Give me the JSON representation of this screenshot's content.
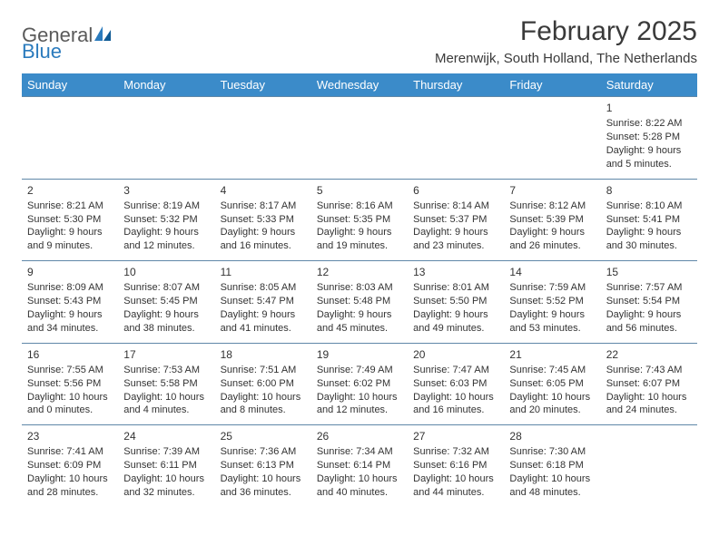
{
  "brand": {
    "general": "General",
    "blue": "Blue"
  },
  "title": "February 2025",
  "location": "Merenwijk, South Holland, The Netherlands",
  "colors": {
    "header_bg": "#3b8bc9",
    "header_text": "#ffffff",
    "row_border": "#5f87a8",
    "body_text": "#333333",
    "title_text": "#3a3a3a",
    "logo_gray": "#5a5a5a",
    "logo_blue": "#2b7bbd"
  },
  "day_headers": [
    "Sunday",
    "Monday",
    "Tuesday",
    "Wednesday",
    "Thursday",
    "Friday",
    "Saturday"
  ],
  "weeks": [
    [
      null,
      null,
      null,
      null,
      null,
      null,
      {
        "n": "1",
        "sr": "Sunrise: 8:22 AM",
        "ss": "Sunset: 5:28 PM",
        "d1": "Daylight: 9 hours",
        "d2": "and 5 minutes."
      }
    ],
    [
      {
        "n": "2",
        "sr": "Sunrise: 8:21 AM",
        "ss": "Sunset: 5:30 PM",
        "d1": "Daylight: 9 hours",
        "d2": "and 9 minutes."
      },
      {
        "n": "3",
        "sr": "Sunrise: 8:19 AM",
        "ss": "Sunset: 5:32 PM",
        "d1": "Daylight: 9 hours",
        "d2": "and 12 minutes."
      },
      {
        "n": "4",
        "sr": "Sunrise: 8:17 AM",
        "ss": "Sunset: 5:33 PM",
        "d1": "Daylight: 9 hours",
        "d2": "and 16 minutes."
      },
      {
        "n": "5",
        "sr": "Sunrise: 8:16 AM",
        "ss": "Sunset: 5:35 PM",
        "d1": "Daylight: 9 hours",
        "d2": "and 19 minutes."
      },
      {
        "n": "6",
        "sr": "Sunrise: 8:14 AM",
        "ss": "Sunset: 5:37 PM",
        "d1": "Daylight: 9 hours",
        "d2": "and 23 minutes."
      },
      {
        "n": "7",
        "sr": "Sunrise: 8:12 AM",
        "ss": "Sunset: 5:39 PM",
        "d1": "Daylight: 9 hours",
        "d2": "and 26 minutes."
      },
      {
        "n": "8",
        "sr": "Sunrise: 8:10 AM",
        "ss": "Sunset: 5:41 PM",
        "d1": "Daylight: 9 hours",
        "d2": "and 30 minutes."
      }
    ],
    [
      {
        "n": "9",
        "sr": "Sunrise: 8:09 AM",
        "ss": "Sunset: 5:43 PM",
        "d1": "Daylight: 9 hours",
        "d2": "and 34 minutes."
      },
      {
        "n": "10",
        "sr": "Sunrise: 8:07 AM",
        "ss": "Sunset: 5:45 PM",
        "d1": "Daylight: 9 hours",
        "d2": "and 38 minutes."
      },
      {
        "n": "11",
        "sr": "Sunrise: 8:05 AM",
        "ss": "Sunset: 5:47 PM",
        "d1": "Daylight: 9 hours",
        "d2": "and 41 minutes."
      },
      {
        "n": "12",
        "sr": "Sunrise: 8:03 AM",
        "ss": "Sunset: 5:48 PM",
        "d1": "Daylight: 9 hours",
        "d2": "and 45 minutes."
      },
      {
        "n": "13",
        "sr": "Sunrise: 8:01 AM",
        "ss": "Sunset: 5:50 PM",
        "d1": "Daylight: 9 hours",
        "d2": "and 49 minutes."
      },
      {
        "n": "14",
        "sr": "Sunrise: 7:59 AM",
        "ss": "Sunset: 5:52 PM",
        "d1": "Daylight: 9 hours",
        "d2": "and 53 minutes."
      },
      {
        "n": "15",
        "sr": "Sunrise: 7:57 AM",
        "ss": "Sunset: 5:54 PM",
        "d1": "Daylight: 9 hours",
        "d2": "and 56 minutes."
      }
    ],
    [
      {
        "n": "16",
        "sr": "Sunrise: 7:55 AM",
        "ss": "Sunset: 5:56 PM",
        "d1": "Daylight: 10 hours",
        "d2": "and 0 minutes."
      },
      {
        "n": "17",
        "sr": "Sunrise: 7:53 AM",
        "ss": "Sunset: 5:58 PM",
        "d1": "Daylight: 10 hours",
        "d2": "and 4 minutes."
      },
      {
        "n": "18",
        "sr": "Sunrise: 7:51 AM",
        "ss": "Sunset: 6:00 PM",
        "d1": "Daylight: 10 hours",
        "d2": "and 8 minutes."
      },
      {
        "n": "19",
        "sr": "Sunrise: 7:49 AM",
        "ss": "Sunset: 6:02 PM",
        "d1": "Daylight: 10 hours",
        "d2": "and 12 minutes."
      },
      {
        "n": "20",
        "sr": "Sunrise: 7:47 AM",
        "ss": "Sunset: 6:03 PM",
        "d1": "Daylight: 10 hours",
        "d2": "and 16 minutes."
      },
      {
        "n": "21",
        "sr": "Sunrise: 7:45 AM",
        "ss": "Sunset: 6:05 PM",
        "d1": "Daylight: 10 hours",
        "d2": "and 20 minutes."
      },
      {
        "n": "22",
        "sr": "Sunrise: 7:43 AM",
        "ss": "Sunset: 6:07 PM",
        "d1": "Daylight: 10 hours",
        "d2": "and 24 minutes."
      }
    ],
    [
      {
        "n": "23",
        "sr": "Sunrise: 7:41 AM",
        "ss": "Sunset: 6:09 PM",
        "d1": "Daylight: 10 hours",
        "d2": "and 28 minutes."
      },
      {
        "n": "24",
        "sr": "Sunrise: 7:39 AM",
        "ss": "Sunset: 6:11 PM",
        "d1": "Daylight: 10 hours",
        "d2": "and 32 minutes."
      },
      {
        "n": "25",
        "sr": "Sunrise: 7:36 AM",
        "ss": "Sunset: 6:13 PM",
        "d1": "Daylight: 10 hours",
        "d2": "and 36 minutes."
      },
      {
        "n": "26",
        "sr": "Sunrise: 7:34 AM",
        "ss": "Sunset: 6:14 PM",
        "d1": "Daylight: 10 hours",
        "d2": "and 40 minutes."
      },
      {
        "n": "27",
        "sr": "Sunrise: 7:32 AM",
        "ss": "Sunset: 6:16 PM",
        "d1": "Daylight: 10 hours",
        "d2": "and 44 minutes."
      },
      {
        "n": "28",
        "sr": "Sunrise: 7:30 AM",
        "ss": "Sunset: 6:18 PM",
        "d1": "Daylight: 10 hours",
        "d2": "and 48 minutes."
      },
      null
    ]
  ]
}
